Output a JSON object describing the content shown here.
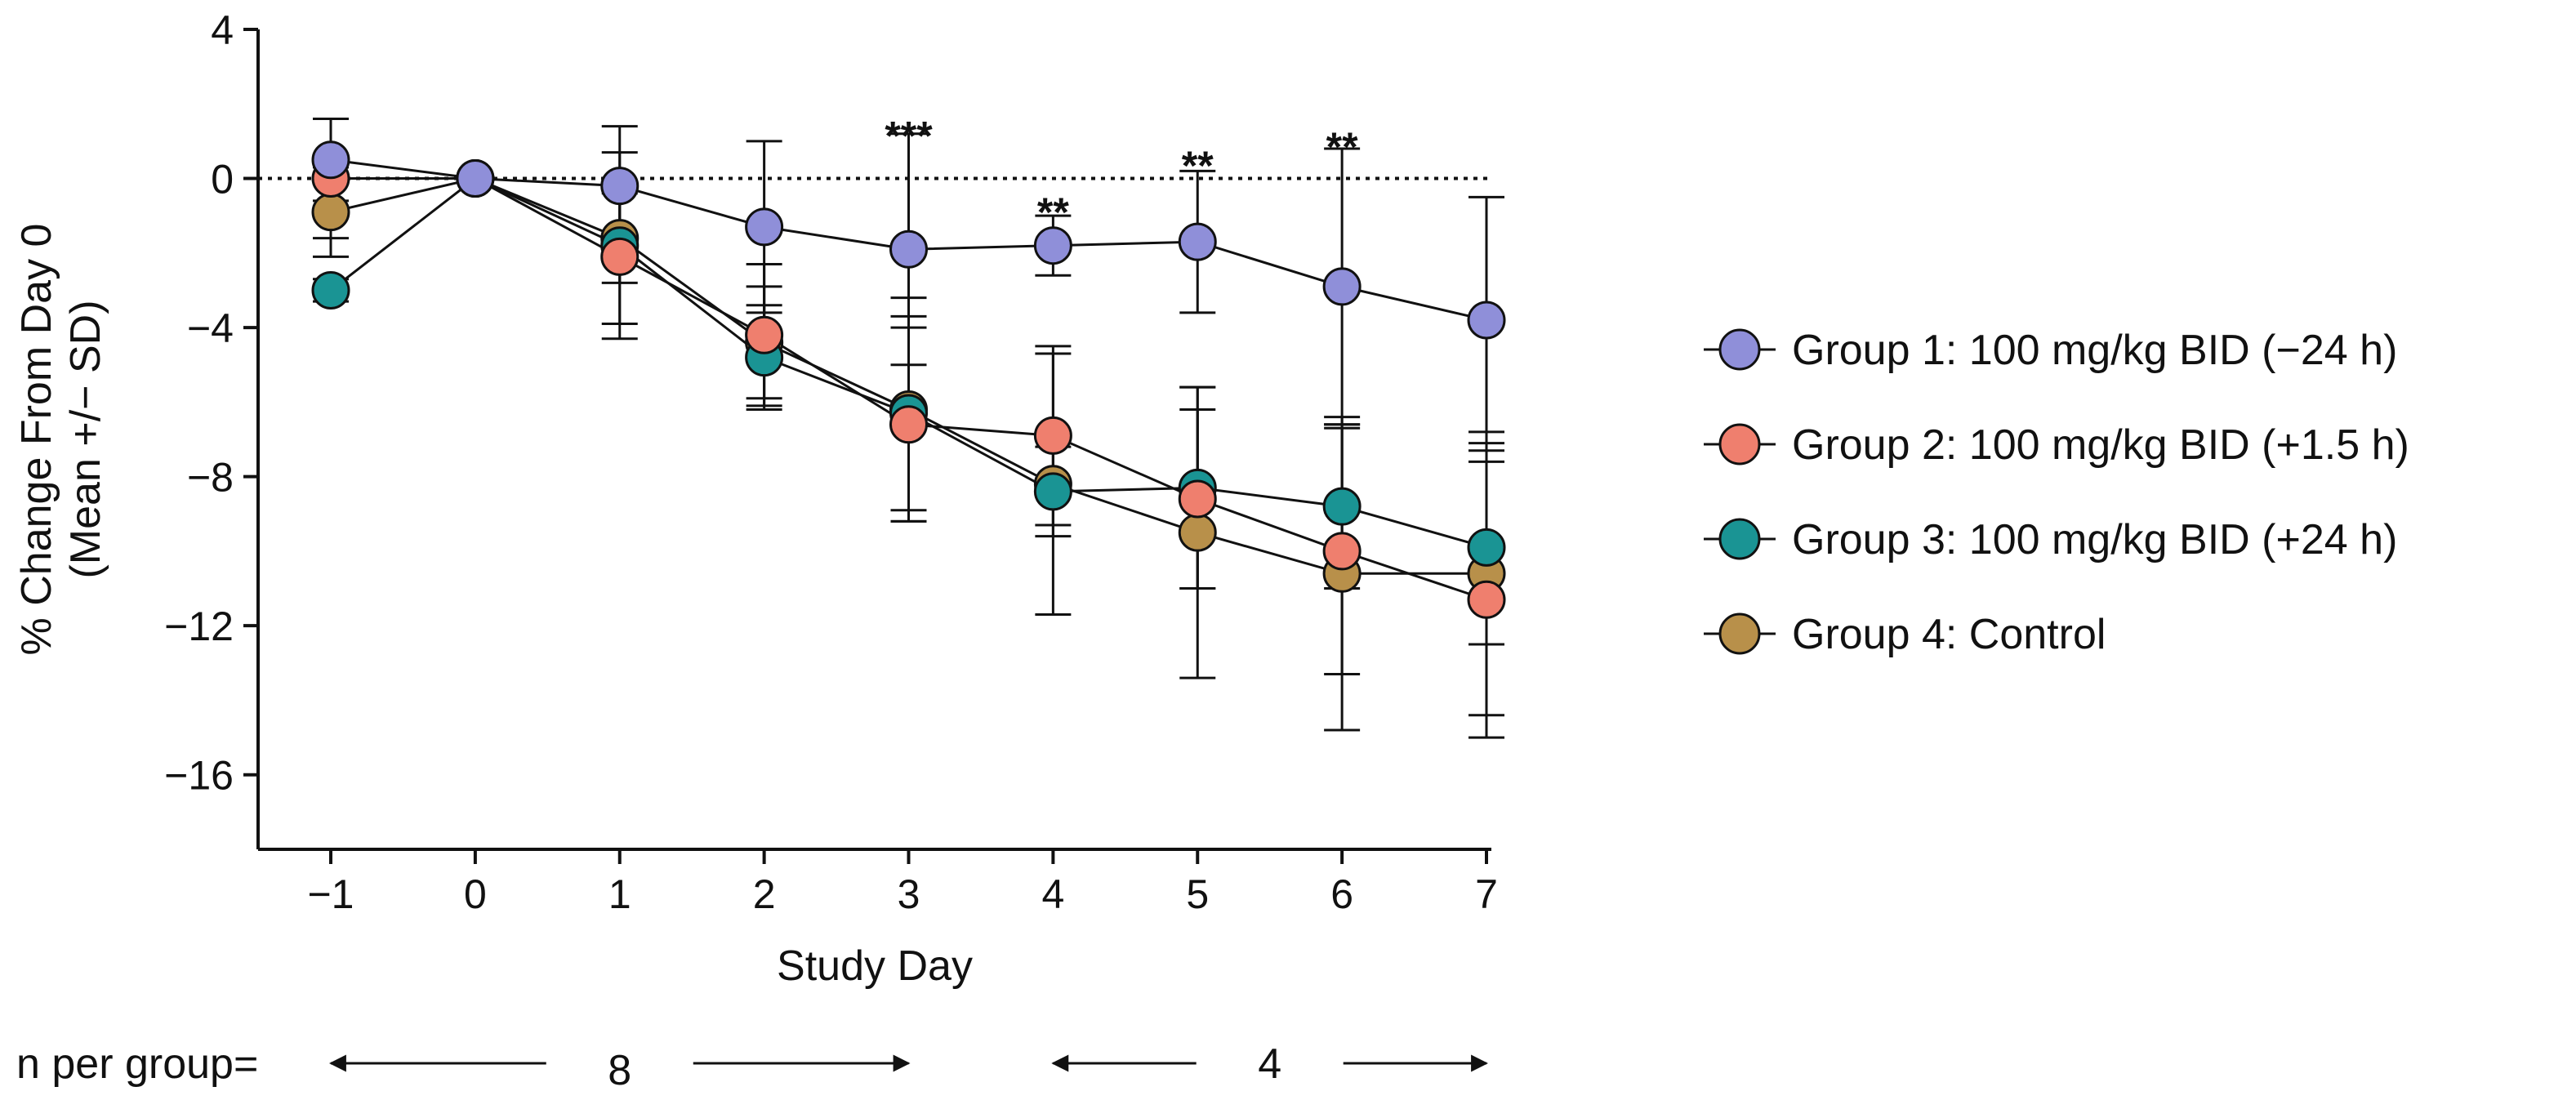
{
  "chart_data": {
    "type": "line",
    "title": "",
    "xlabel": "Study Day",
    "ylabel": "% Change From Day 0",
    "ylabel_sub": "(Mean +/− SD)",
    "xlim": [
      -1,
      7
    ],
    "ylim": [
      -18,
      4
    ],
    "x_ticks": [
      -1,
      0,
      1,
      2,
      3,
      4,
      5,
      6,
      7
    ],
    "x_tick_labels": [
      "−1",
      "0",
      "1",
      "2",
      "3",
      "4",
      "5",
      "6",
      "7"
    ],
    "y_ticks": [
      4,
      0,
      -4,
      -8,
      -12,
      -16
    ],
    "y_tick_labels": [
      "4",
      "0",
      "−4",
      "−8",
      "−12",
      "−16"
    ],
    "grid": false,
    "reference_line_y": 0,
    "legend_position": "right",
    "series": [
      {
        "name": "Group 1: 100 mg/kg BID (−24 h)",
        "color": "#8f8fd9",
        "x": [
          -1,
          0,
          1,
          2,
          3,
          4,
          5,
          6,
          7
        ],
        "y": [
          0.5,
          0,
          -0.2,
          -1.3,
          -1.9,
          -1.8,
          -1.7,
          -2.9,
          -3.8
        ],
        "sd": [
          1.1,
          0,
          1.6,
          2.3,
          3.1,
          0.8,
          1.9,
          3.7,
          3.3
        ]
      },
      {
        "name": "Group 2: 100 mg/kg BID (+1.5 h)",
        "color": "#ef7f6e",
        "x": [
          -1,
          0,
          1,
          2,
          3,
          4,
          5,
          6,
          7
        ],
        "y": [
          0.0,
          0,
          -2.1,
          -4.2,
          -6.6,
          -6.9,
          -8.6,
          -10.0,
          -11.3
        ],
        "sd": [
          1.6,
          0,
          1.8,
          1.9,
          2.6,
          2.4,
          2.4,
          3.3,
          3.7
        ]
      },
      {
        "name": "Group 3: 100 mg/kg BID (+24 h)",
        "color": "#1a9494",
        "x": [
          -1,
          0,
          1,
          2,
          3,
          4,
          5,
          6,
          7
        ],
        "y": [
          -3.0,
          0,
          -1.8,
          -4.8,
          -6.3,
          -8.4,
          -8.3,
          -8.8,
          -9.9
        ],
        "sd": [
          0.3,
          0,
          2.5,
          1.4,
          2.6,
          1.2,
          2.7,
          2.2,
          2.6
        ]
      },
      {
        "name": "Group 4: Control",
        "color": "#b8904a",
        "x": [
          -1,
          0,
          1,
          2,
          3,
          4,
          5,
          6,
          7
        ],
        "y": [
          -0.9,
          0,
          -1.6,
          -4.4,
          -6.2,
          -8.2,
          -9.5,
          -10.6,
          -10.6
        ],
        "sd": [
          1.2,
          0,
          1.2,
          1.5,
          3.0,
          3.5,
          3.9,
          4.2,
          3.8
        ]
      }
    ],
    "annotations": [
      {
        "x": 3,
        "y": 1.25,
        "text": "***"
      },
      {
        "x": 4,
        "y": -0.8,
        "text": "**"
      },
      {
        "x": 5,
        "y": 0.45,
        "text": "**"
      },
      {
        "x": 6,
        "y": 0.95,
        "text": "**"
      }
    ],
    "n_row": {
      "label": "n per group=",
      "segments": [
        {
          "value": "8",
          "x_from": -1,
          "x_to": 3
        },
        {
          "value": "4",
          "x_from": 4,
          "x_to": 7
        }
      ]
    }
  }
}
